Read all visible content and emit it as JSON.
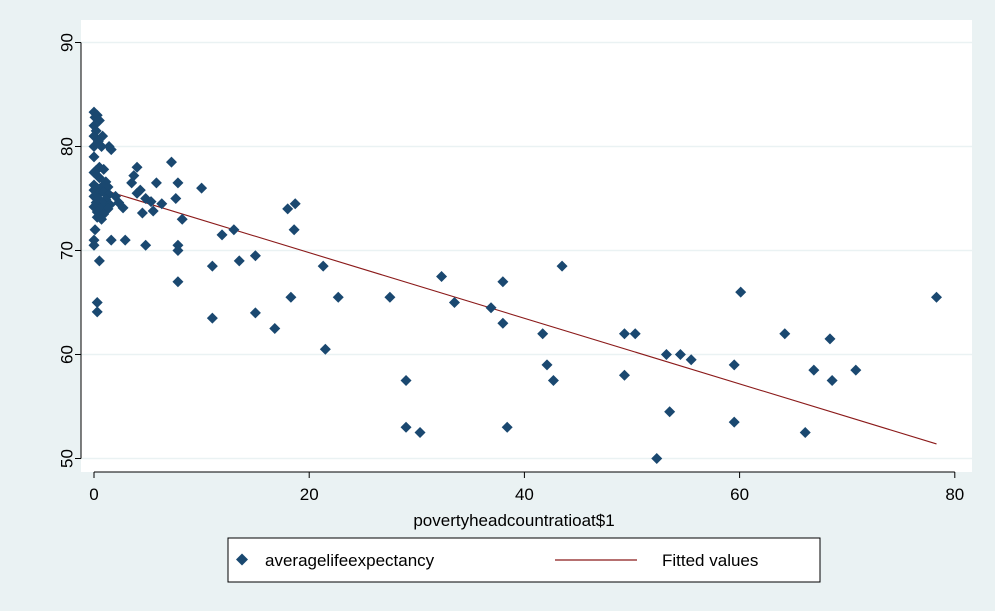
{
  "chart_data": {
    "type": "scatter",
    "title": "",
    "xlabel": "povertyheadcountratioat$1",
    "ylabel": "",
    "xlim": [
      -2,
      80
    ],
    "ylim": [
      49,
      91
    ],
    "xticks": [
      0,
      20,
      40,
      60,
      80
    ],
    "yticks": [
      50,
      60,
      70,
      80,
      90
    ],
    "grid": "horizontal",
    "legend_position": "bottom",
    "colors": {
      "background": "#eaf2f3",
      "plot_area": "#ffffff",
      "points": "#1a4870",
      "fit_line": "#8b1a1a",
      "grid": "#eaf2f3"
    },
    "series": [
      {
        "name": "averagelifeexpectancy",
        "marker": "diamond",
        "points": [
          [
            0,
            83.3
          ],
          [
            0.1,
            82.8
          ],
          [
            0.3,
            83.0
          ],
          [
            0.5,
            82.5
          ],
          [
            0,
            82.0
          ],
          [
            0.2,
            81.5
          ],
          [
            0,
            81.0
          ],
          [
            0.8,
            81.0
          ],
          [
            0.4,
            80.5
          ],
          [
            0,
            80.0
          ],
          [
            0.7,
            80.0
          ],
          [
            1.4,
            80.0
          ],
          [
            1.6,
            79.7
          ],
          [
            0,
            79.0
          ],
          [
            0.5,
            78.0
          ],
          [
            0.2,
            77.7
          ],
          [
            0.9,
            77.8
          ],
          [
            0,
            77.5
          ],
          [
            0.5,
            77.0
          ],
          [
            1.1,
            76.6
          ],
          [
            0,
            76.3
          ],
          [
            0.3,
            76.0
          ],
          [
            0.8,
            76.2
          ],
          [
            1.3,
            76.1
          ],
          [
            0,
            75.8
          ],
          [
            0.5,
            75.5
          ],
          [
            0.9,
            75.6
          ],
          [
            1.4,
            75.4
          ],
          [
            0,
            75.2
          ],
          [
            0.4,
            75.0
          ],
          [
            1.1,
            74.9
          ],
          [
            2.0,
            75.2
          ],
          [
            0.2,
            74.6
          ],
          [
            0.9,
            74.5
          ],
          [
            1.5,
            74.4
          ],
          [
            2.3,
            74.6
          ],
          [
            0,
            74.2
          ],
          [
            0.6,
            74.0
          ],
          [
            1.3,
            74.0
          ],
          [
            2.7,
            74.1
          ],
          [
            0.3,
            73.7
          ],
          [
            0.9,
            73.5
          ],
          [
            0.3,
            73.2
          ],
          [
            0.7,
            73.0
          ],
          [
            0.1,
            72.0
          ],
          [
            0,
            71.0
          ],
          [
            0,
            70.5
          ],
          [
            1.6,
            71.0
          ],
          [
            2.9,
            71.0
          ],
          [
            0.5,
            69.0
          ],
          [
            0.3,
            65.0
          ],
          [
            0.3,
            64.1
          ],
          [
            4.0,
            78.0
          ],
          [
            3.7,
            77.2
          ],
          [
            4.3,
            75.8
          ],
          [
            3.5,
            76.5
          ],
          [
            4.0,
            75.5
          ],
          [
            4.8,
            75.0
          ],
          [
            5.3,
            74.7
          ],
          [
            4.5,
            73.6
          ],
          [
            5.8,
            76.5
          ],
          [
            6.3,
            74.5
          ],
          [
            5.5,
            73.8
          ],
          [
            7.2,
            78.5
          ],
          [
            7.8,
            76.5
          ],
          [
            7.6,
            75.0
          ],
          [
            8.2,
            73.0
          ],
          [
            7.8,
            70.5
          ],
          [
            7.8,
            70.0
          ],
          [
            7.8,
            67.0
          ],
          [
            4.8,
            70.5
          ],
          [
            10.0,
            76.0
          ],
          [
            11.0,
            68.5
          ],
          [
            11.0,
            63.5
          ],
          [
            11.9,
            71.5
          ],
          [
            13.0,
            72.0
          ],
          [
            13.5,
            69.0
          ],
          [
            15.0,
            69.5
          ],
          [
            15.0,
            64.0
          ],
          [
            16.8,
            62.5
          ],
          [
            18.0,
            74.0
          ],
          [
            18.7,
            74.5
          ],
          [
            18.6,
            72.0
          ],
          [
            18.3,
            65.5
          ],
          [
            21.3,
            68.5
          ],
          [
            21.5,
            60.5
          ],
          [
            22.7,
            65.5
          ],
          [
            27.5,
            65.5
          ],
          [
            29.0,
            57.5
          ],
          [
            29.0,
            53.0
          ],
          [
            30.3,
            52.5
          ],
          [
            32.3,
            67.5
          ],
          [
            33.5,
            65.0
          ],
          [
            36.9,
            64.5
          ],
          [
            38.0,
            67.0
          ],
          [
            38.0,
            63.0
          ],
          [
            38.4,
            53.0
          ],
          [
            41.7,
            62.0
          ],
          [
            42.1,
            59.0
          ],
          [
            42.7,
            57.5
          ],
          [
            43.5,
            68.5
          ],
          [
            49.3,
            62.0
          ],
          [
            50.3,
            62.0
          ],
          [
            49.3,
            58.0
          ],
          [
            52.3,
            50.0
          ],
          [
            53.2,
            60.0
          ],
          [
            53.5,
            54.5
          ],
          [
            54.5,
            60.0
          ],
          [
            55.5,
            59.5
          ],
          [
            59.5,
            59.0
          ],
          [
            59.5,
            53.5
          ],
          [
            60.1,
            66.0
          ],
          [
            64.2,
            62.0
          ],
          [
            66.1,
            52.5
          ],
          [
            66.9,
            58.5
          ],
          [
            68.4,
            61.5
          ],
          [
            68.6,
            57.5
          ],
          [
            70.8,
            58.5
          ],
          [
            78.3,
            65.5
          ]
        ]
      },
      {
        "name": "Fitted values",
        "type": "line",
        "points": [
          [
            0,
            76.1
          ],
          [
            78.3,
            51.4
          ]
        ]
      }
    ]
  }
}
